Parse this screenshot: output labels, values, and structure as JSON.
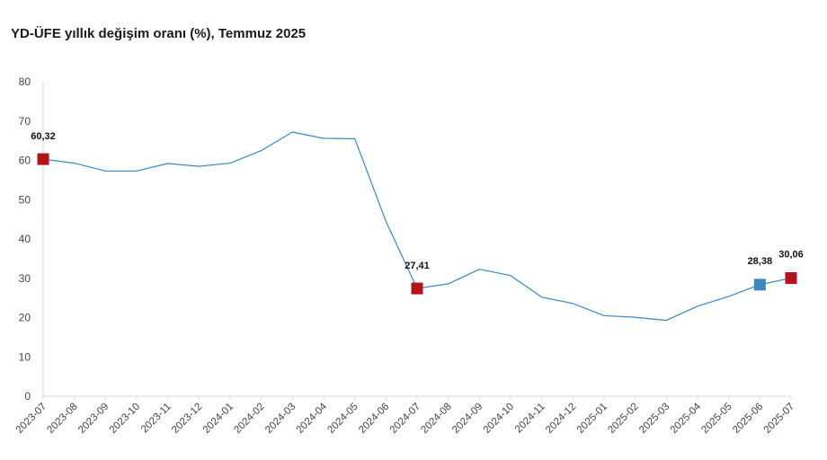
{
  "chart_data": {
    "type": "line",
    "title": "YD-ÜFE yıllık değişim oranı (%), Temmuz 2025",
    "xlabel": "",
    "ylabel": "",
    "ylim": [
      0,
      80
    ],
    "yticks": [
      "0",
      "10",
      "20",
      "30",
      "40",
      "50",
      "60",
      "70",
      "80"
    ],
    "grid": false,
    "categories": [
      "2023-07",
      "2023-08",
      "2023-09",
      "2023-10",
      "2023-11",
      "2023-12",
      "2024-01",
      "2024-02",
      "2024-03",
      "2024-04",
      "2024-05",
      "2024-06",
      "2024-07",
      "2024-08",
      "2024-09",
      "2024-10",
      "2024-11",
      "2024-12",
      "2025-01",
      "2025-02",
      "2025-03",
      "2025-04",
      "2025-05",
      "2025-06",
      "2025-07"
    ],
    "series": [
      {
        "values": [
          60.32,
          59.3,
          57.3,
          57.3,
          59.2,
          58.5,
          59.3,
          62.5,
          67.2,
          65.6,
          65.5,
          44.5,
          27.41,
          28.6,
          32.3,
          30.7,
          25.2,
          23.6,
          20.5,
          20.1,
          19.3,
          22.9,
          25.4,
          28.38,
          30.06
        ],
        "color": "#3a87c0"
      }
    ],
    "highlights": [
      {
        "category": "2023-07",
        "value": 60.32,
        "label": "60,32",
        "color": "#b5121b"
      },
      {
        "category": "2024-07",
        "value": 27.41,
        "label": "27,41",
        "color": "#b5121b"
      },
      {
        "category": "2025-06",
        "value": 28.38,
        "label": "28,38",
        "color": "#3a87c0"
      },
      {
        "category": "2025-07",
        "value": 30.06,
        "label": "30,06",
        "color": "#b5121b"
      }
    ],
    "axis_color": "#d9d9d9"
  }
}
